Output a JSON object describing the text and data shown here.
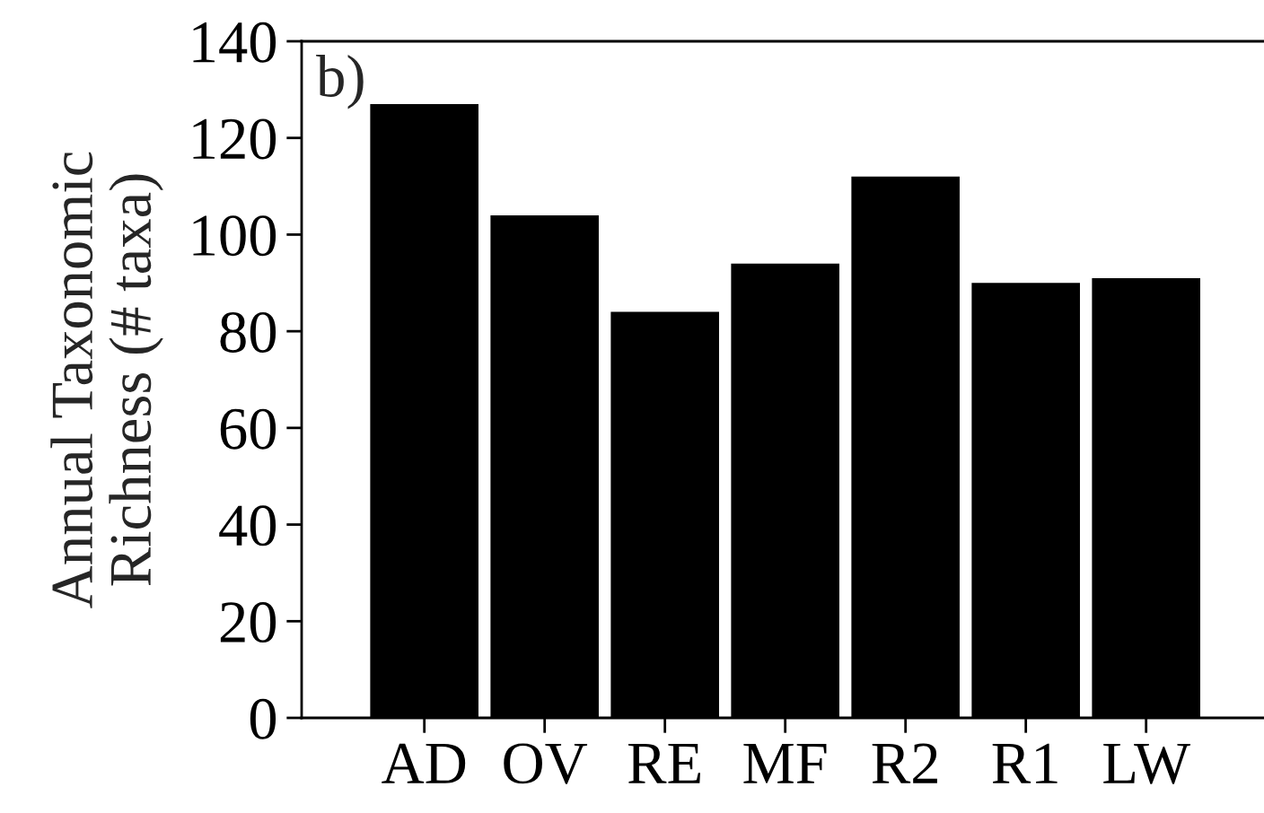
{
  "chart_data": {
    "type": "bar",
    "ylabel": "Annual Taxonomic\nRichness (# taxa)",
    "categories": [
      "AD",
      "OV",
      "RE",
      "MF",
      "R2",
      "R1",
      "LW"
    ],
    "values": [
      127,
      104,
      84,
      94,
      112,
      90,
      91
    ],
    "color": "#000000",
    "ylim": [
      0,
      140
    ],
    "yticks": [
      0,
      20,
      40,
      60,
      80,
      100,
      120,
      140
    ],
    "grid": false,
    "annotations": [
      "b)"
    ]
  }
}
